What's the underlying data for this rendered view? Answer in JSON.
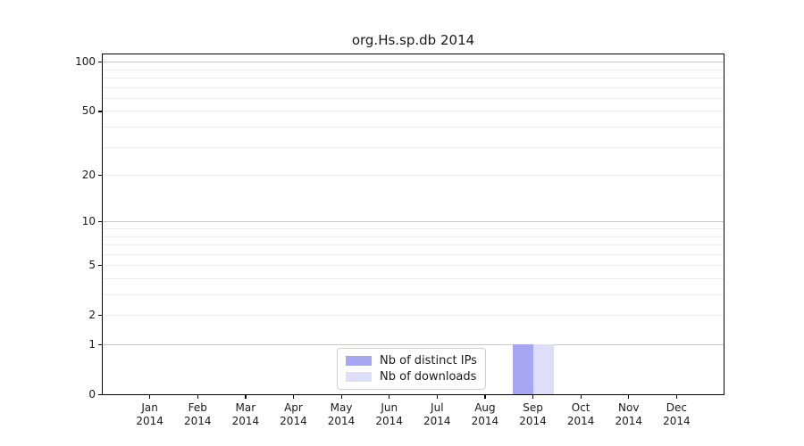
{
  "chart_data": {
    "type": "bar",
    "title": "org.Hs.sp.db 2014",
    "categories": [
      "Jan",
      "Feb",
      "Mar",
      "Apr",
      "May",
      "Jun",
      "Jul",
      "Aug",
      "Sep",
      "Oct",
      "Nov",
      "Dec"
    ],
    "category_year": "2014",
    "series": [
      {
        "name": "Nb of distinct IPs",
        "color": "#a6a6f2",
        "values": [
          0,
          0,
          0,
          0,
          0,
          0,
          0,
          0,
          1,
          0,
          0,
          0
        ]
      },
      {
        "name": "Nb of downloads",
        "color": "#dedef8",
        "values": [
          0,
          0,
          0,
          0,
          0,
          0,
          0,
          0,
          1,
          0,
          0,
          0
        ]
      }
    ],
    "y_scale": "log1p",
    "ylim": [
      0,
      113
    ],
    "y_ticks": [
      100,
      50,
      20,
      10,
      5,
      2,
      1,
      0
    ],
    "y_major_gridlines": [
      1,
      10,
      100
    ],
    "y_minor_gridlines": [
      2,
      3,
      4,
      5,
      6,
      7,
      8,
      9,
      20,
      30,
      40,
      50,
      60,
      70,
      80,
      90
    ],
    "grid": true,
    "legend_position": "bottom-center",
    "colors": {
      "axis": "#000000",
      "major_gridline": "#c9c9c9",
      "minor_gridline": "#ededed",
      "text": "#1a1a1a"
    }
  }
}
